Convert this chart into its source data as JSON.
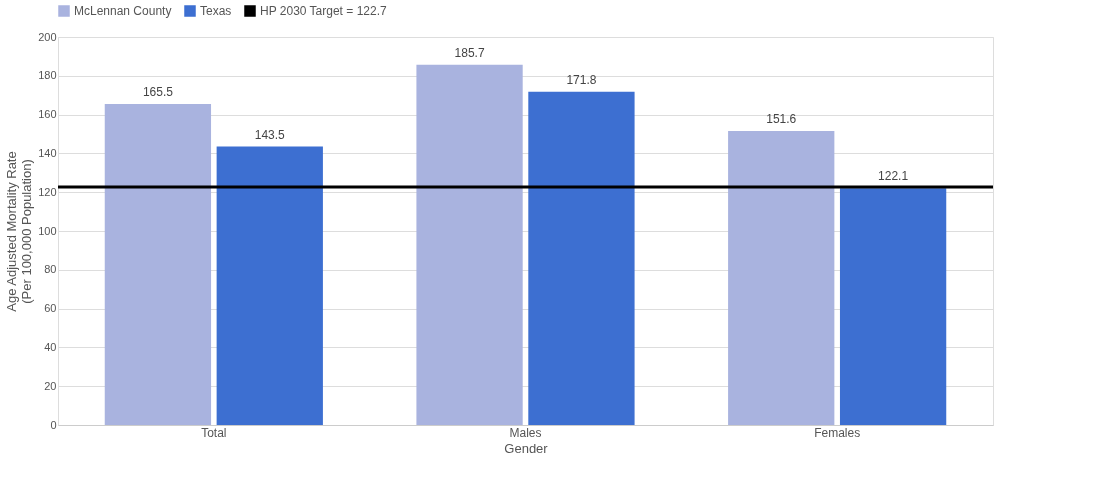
{
  "chart_data": {
    "type": "bar",
    "xlabel": "Gender",
    "ylabel": "Age Adjusted Mortality Rate (Per 100,000 Population)",
    "categories": [
      "Total",
      "Males",
      "Females"
    ],
    "series": [
      {
        "name": "McLennan County",
        "color": "#a9b3df",
        "values": [
          165.5,
          185.7,
          151.6
        ]
      },
      {
        "name": "Texas",
        "color": "#3d6fd1",
        "values": [
          143.5,
          171.8,
          122.1
        ]
      }
    ],
    "ylim": [
      0,
      200
    ],
    "yticks": [
      0,
      20,
      40,
      60,
      80,
      100,
      120,
      140,
      160,
      180,
      200
    ],
    "grid": "y",
    "legend": "top",
    "data_labels": true,
    "ref_lines": [
      {
        "axis": "y",
        "value": 122.7,
        "label": "HP 2030 Target = 122.7",
        "color": "#000000"
      }
    ]
  }
}
